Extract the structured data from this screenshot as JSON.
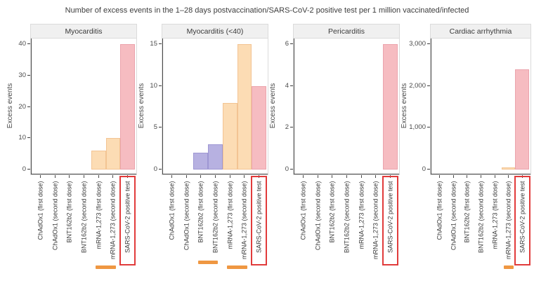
{
  "figure": {
    "title": "Number of excess events in the 1–28 days postvaccination/SARS-CoV-2 positive test per 1 million vaccinated/infected"
  },
  "colors": {
    "peach_fill": "#fcdcb4",
    "peach_border": "#f3c493",
    "purple_fill": "#b7b1e1",
    "purple_border": "#9e97d3",
    "pink_fill": "#f6bcc1",
    "pink_border": "#eba4ad",
    "underline_orange": "#ef9742",
    "highlight_red": "#e13b3b",
    "strip_bg": "#f0f0f0",
    "axis_line": "#4a4a4a"
  },
  "categories": [
    "ChAdOx1 (first dose)",
    "ChAdOx1 (second dose)",
    "BNT162b2 (first dose)",
    "BNT162b2 (second dose)",
    "mRNA-1,273 (first dose)",
    "mRNA-1,273 (second dose)",
    "SARS-CoV-2 positive test"
  ],
  "chart_data": [
    {
      "type": "bar",
      "title": "Myocarditis",
      "ylabel": "Excess events",
      "ylim": [
        0,
        40
      ],
      "yticks": [
        "0",
        "10",
        "20",
        "30",
        "40"
      ],
      "grid": false,
      "categories": [
        "ChAdOx1 (first dose)",
        "ChAdOx1 (second dose)",
        "BNT162b2 (first dose)",
        "BNT162b2 (second dose)",
        "mRNA-1,273 (first dose)",
        "mRNA-1,273 (second dose)",
        "SARS-CoV-2 positive test"
      ],
      "values": [
        0,
        0,
        0,
        0,
        6,
        10,
        40
      ],
      "bar_palette": [
        "none",
        "none",
        "none",
        "none",
        "peach",
        "peach",
        "pink"
      ],
      "highlight_index": 6,
      "underlines": [
        {
          "from": 4,
          "to": 5,
          "dy": 125
        }
      ]
    },
    {
      "type": "bar",
      "title": "Myocarditis (<40)",
      "ylabel": "Excess events",
      "ylim": [
        0,
        15
      ],
      "yticks": [
        "0",
        "5",
        "10",
        "15"
      ],
      "grid": false,
      "categories": [
        "ChAdOx1 (first dose)",
        "ChAdOx1 (second dose)",
        "BNT162b2 (first dose)",
        "BNT162b2 (second dose)",
        "mRNA-1,273 (first dose)",
        "mRNA-1,273 (second dose)",
        "SARS-CoV-2 positive test"
      ],
      "values": [
        0,
        0,
        2,
        3,
        8,
        15,
        10
      ],
      "bar_palette": [
        "none",
        "none",
        "purple",
        "purple",
        "peach",
        "peach",
        "pink"
      ],
      "highlight_index": 6,
      "underlines": [
        {
          "from": 2,
          "to": 3,
          "dy": 118
        },
        {
          "from": 4,
          "to": 5,
          "dy": 125
        }
      ]
    },
    {
      "type": "bar",
      "title": "Pericarditis",
      "ylabel": "Excess events",
      "ylim": [
        0,
        6
      ],
      "yticks": [
        "0",
        "2",
        "4",
        "6"
      ],
      "grid": false,
      "categories": [
        "ChAdOx1 (first dose)",
        "ChAdOx1 (second dose)",
        "BNT162b2 (first dose)",
        "BNT162b2 (second dose)",
        "mRNA-1,273 (first dose)",
        "mRNA-1,273 (second dose)",
        "SARS-CoV-2 positive test"
      ],
      "values": [
        0,
        0,
        0,
        0,
        0,
        0,
        6
      ],
      "bar_palette": [
        "none",
        "none",
        "none",
        "none",
        "none",
        "none",
        "pink"
      ],
      "highlight_index": 6,
      "underlines": []
    },
    {
      "type": "bar",
      "title": "Cardiac arrhythmia",
      "ylabel": "Excess events",
      "ylim": [
        0,
        3000
      ],
      "yticks": [
        "0",
        "1,000",
        "2,000",
        "3,000"
      ],
      "grid": false,
      "categories": [
        "ChAdOx1 (first dose)",
        "ChAdOx1 (second dose)",
        "BNT162b2 (first dose)",
        "BNT162b2 (second dose)",
        "mRNA-1,273 (first dose)",
        "mRNA-1,273 (second dose)",
        "SARS-CoV-2 positive test"
      ],
      "values": [
        0,
        0,
        0,
        0,
        0,
        50,
        2400
      ],
      "bar_palette": [
        "none",
        "none",
        "none",
        "none",
        "none",
        "peach",
        "pink"
      ],
      "highlight_index": 6,
      "underlines": [
        {
          "from": 5,
          "to": 5,
          "dy": 125
        }
      ]
    }
  ]
}
